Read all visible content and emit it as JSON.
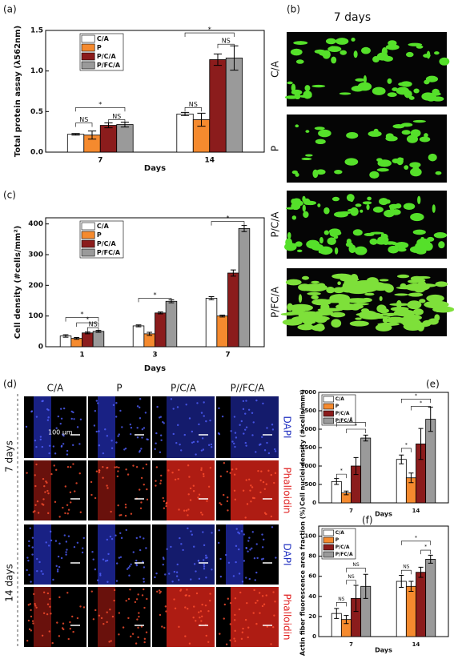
{
  "panel_labels": [
    "(a)",
    "(b)",
    "(c)",
    "(d)",
    "(e)",
    "(f)"
  ],
  "chart_data": [
    {
      "type": "bar",
      "ylabel": "Total protein assay (λ562nm)",
      "xlabel": "Days",
      "categories": [
        "7",
        "14"
      ],
      "series": [
        {
          "name": "C/A",
          "color": "#ffffff",
          "values": [
            0.22,
            0.47
          ],
          "errors": [
            0.01,
            0.02
          ]
        },
        {
          "name": "P",
          "color": "#f58a2e",
          "values": [
            0.21,
            0.4
          ],
          "errors": [
            0.05,
            0.08
          ]
        },
        {
          "name": "P/C/A",
          "color": "#8b1c1c",
          "values": [
            0.33,
            1.14
          ],
          "errors": [
            0.03,
            0.07
          ]
        },
        {
          "name": "P/FC/A",
          "color": "#9a9a9a",
          "values": [
            0.34,
            1.16
          ],
          "errors": [
            0.03,
            0.15
          ]
        }
      ],
      "ylim": [
        0,
        1.5
      ],
      "yticks": [
        {
          "value": 0,
          "label": "0.0"
        },
        0.5,
        {
          "value": 1,
          "label": "1.0"
        },
        1.5
      ],
      "legend": "upper left",
      "annotations": [
        "NS",
        "NS",
        "*",
        "NS",
        "NS",
        "*"
      ]
    },
    {
      "type": "bar",
      "ylabel": "Cell density (#cells/mm²)",
      "xlabel": "Days",
      "categories": [
        "1",
        "3",
        "7"
      ],
      "series": [
        {
          "name": "C/A",
          "color": "#ffffff",
          "values": [
            35,
            68,
            158
          ],
          "errors": [
            4,
            3,
            5
          ]
        },
        {
          "name": "P",
          "color": "#f58a2e",
          "values": [
            27,
            42,
            100
          ],
          "errors": [
            3,
            5,
            3
          ]
        },
        {
          "name": "P/C/A",
          "color": "#8b1c1c",
          "values": [
            45,
            110,
            240
          ],
          "errors": [
            3,
            3,
            10
          ]
        },
        {
          "name": "P/FC/A",
          "color": "#9a9a9a",
          "values": [
            50,
            148,
            385
          ],
          "errors": [
            3,
            5,
            10
          ]
        }
      ],
      "ylim": [
        0,
        420
      ],
      "yticks": [
        0,
        100,
        200,
        300,
        400
      ],
      "legend": "upper left",
      "annotations": [
        "*",
        "*",
        "NS",
        "*",
        "*"
      ]
    },
    {
      "type": "bar",
      "ylabel": "Cell nuclei density (# cells/mm³)",
      "xlabel": "Days",
      "categories": [
        "7",
        "14"
      ],
      "series": [
        {
          "name": "C/A",
          "color": "#ffffff",
          "values": [
            580,
            1180
          ],
          "errors": [
            80,
            120
          ]
        },
        {
          "name": "P",
          "color": "#f58a2e",
          "values": [
            270,
            680
          ],
          "errors": [
            50,
            130
          ]
        },
        {
          "name": "P/C/A",
          "color": "#8b1c1c",
          "values": [
            1000,
            1600
          ],
          "errors": [
            230,
            420
          ]
        },
        {
          "name": "P/FC/A",
          "color": "#9a9a9a",
          "values": [
            1760,
            2270
          ],
          "errors": [
            80,
            330
          ]
        }
      ],
      "ylim": [
        0,
        3000
      ],
      "yticks": [
        0,
        500,
        1000,
        1500,
        2000,
        2500,
        3000
      ],
      "legend": "upper left",
      "annotations": [
        "*",
        "*",
        "*",
        "*",
        "*",
        "*"
      ]
    },
    {
      "type": "bar",
      "ylabel": "Actin fiber fluorescence area fraction (%)",
      "xlabel": "Days",
      "categories": [
        "7",
        "14"
      ],
      "series": [
        {
          "name": "C/A",
          "color": "#ffffff",
          "values": [
            23,
            55
          ],
          "errors": [
            5,
            6
          ]
        },
        {
          "name": "P",
          "color": "#f58a2e",
          "values": [
            17,
            50
          ],
          "errors": [
            4,
            5
          ]
        },
        {
          "name": "P/C/A",
          "color": "#8b1c1c",
          "values": [
            38,
            64
          ],
          "errors": [
            13,
            5
          ]
        },
        {
          "name": "P/FC/A",
          "color": "#9a9a9a",
          "values": [
            50,
            77
          ],
          "errors": [
            12,
            4
          ]
        }
      ],
      "ylim": [
        0,
        110
      ],
      "yticks": [
        0,
        20,
        40,
        60,
        80,
        100
      ],
      "legend": "upper left",
      "annotations": [
        "NS",
        "NS",
        "NS",
        "NS",
        "*",
        "*"
      ]
    }
  ],
  "panel_b": {
    "title": "7 days",
    "rows": [
      "C/A",
      "P",
      "P/C/A",
      "P/FC/A"
    ]
  },
  "panel_d": {
    "columns": [
      "C/A",
      "P",
      "P/C/A",
      "P//FC/A"
    ],
    "row_groups": [
      "7 days",
      "14 days"
    ],
    "stains": [
      "DAPI",
      "Phalloidin",
      "DAPI",
      "Phalloidin"
    ],
    "scale_bar": "100 µm"
  }
}
